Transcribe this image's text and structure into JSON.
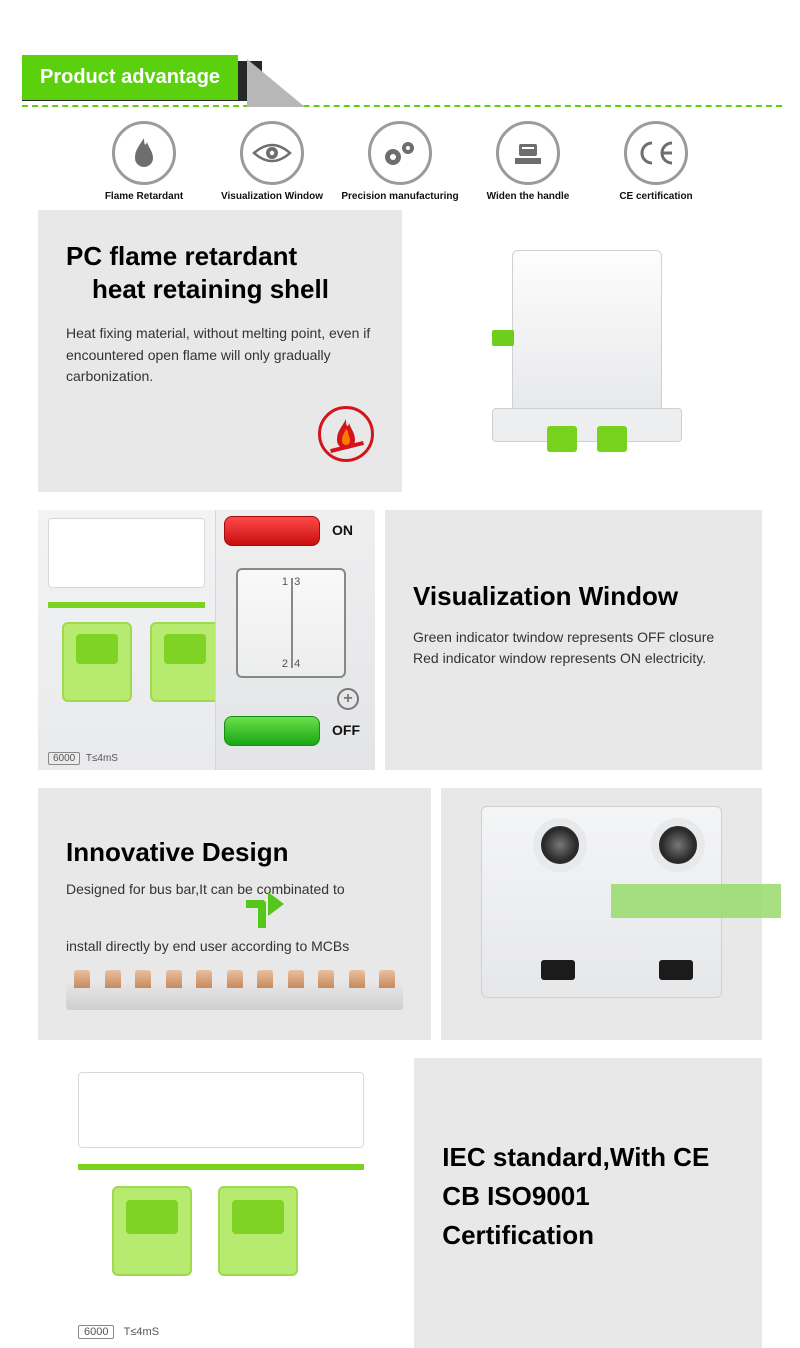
{
  "colors": {
    "green": "#5bd10e",
    "green_light": "#7ad31f",
    "dark": "#262728",
    "red": "#d4141b",
    "panel_grey": "#e8e8e8",
    "icon_ring": "#9b9b9b"
  },
  "header": {
    "title": "Product advantage"
  },
  "icons": [
    {
      "name": "flame-icon",
      "label": "Flame Retardant"
    },
    {
      "name": "eye-icon",
      "label": "Visualization Window"
    },
    {
      "name": "gears-icon",
      "label": "Precision manufacturing"
    },
    {
      "name": "handle-icon",
      "label": "Widen the handle"
    },
    {
      "name": "ce-icon",
      "label": "CE certification"
    }
  ],
  "section1": {
    "title_line1": "PC flame retardant",
    "title_line2": "heat retaining shell",
    "body": "Heat fixing material, without melting point, even if encountered open flame will only gradually carbonization."
  },
  "section2": {
    "title": "Visualization Window",
    "body": "Green indicator twindow represents OFF closure Red indicator window represents ON electricity.",
    "on_label": "ON",
    "off_label": "OFF",
    "diagram_nums": "1  3\n2  4",
    "breaker_spec1": "6000",
    "breaker_spec2": "T≤4mS"
  },
  "section3": {
    "title": "Innovative Design",
    "body_line1": "Designed for bus bar,It can be combinated to",
    "body_line2": "install directly by end user according to MCBs",
    "busbar_teeth": 11
  },
  "section4": {
    "title": "IEC standard,With CE CB ISO9001 Certification",
    "breaker_spec1": "6000",
    "breaker_spec2": "T≤4mS"
  }
}
